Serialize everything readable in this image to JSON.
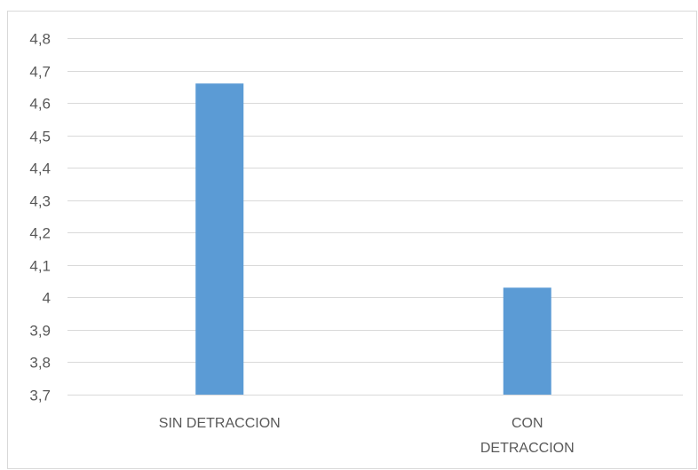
{
  "chart_data": {
    "type": "bar",
    "categories": [
      [
        "SIN DETRACCION"
      ],
      [
        "CON",
        "DETRACCION"
      ]
    ],
    "values": [
      4.66,
      4.03
    ],
    "ylim": [
      3.7,
      4.8
    ],
    "yticks": [
      "3,7",
      "3,8",
      "3,9",
      "4",
      "4,1",
      "4,2",
      "4,3",
      "4,4",
      "4,5",
      "4,6",
      "4,7",
      "4,8"
    ],
    "ytick_values": [
      3.7,
      3.8,
      3.9,
      4.0,
      4.1,
      4.2,
      4.3,
      4.4,
      4.5,
      4.6,
      4.7,
      4.8
    ],
    "grid": true,
    "bar_color": "#5b9bd5",
    "grid_color": "#d9d9d9"
  }
}
